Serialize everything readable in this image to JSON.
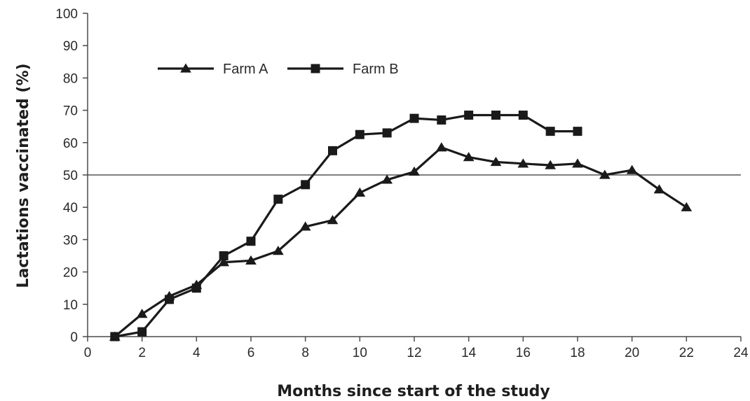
{
  "chart_data": {
    "type": "line",
    "title": "",
    "xlabel": "Months since start of the study",
    "ylabel": "Lactations vaccinated (%)",
    "xlim": [
      0,
      24
    ],
    "ylim": [
      0,
      100
    ],
    "x_ticks": [
      0,
      2,
      4,
      6,
      8,
      10,
      12,
      14,
      16,
      18,
      20,
      22,
      24
    ],
    "y_ticks": [
      0,
      10,
      20,
      30,
      40,
      50,
      60,
      70,
      80,
      90,
      100
    ],
    "grid": false,
    "legend_position": "top-left",
    "reference_line": {
      "y": 50
    },
    "series": [
      {
        "name": "Farm A",
        "marker": "triangle",
        "color": "#1a1a1a",
        "x": [
          1,
          2,
          3,
          4,
          5,
          6,
          7,
          8,
          9,
          10,
          11,
          12,
          13,
          14,
          15,
          16,
          17,
          18,
          19,
          20,
          21,
          22
        ],
        "y": [
          0,
          7,
          12.5,
          16,
          23,
          23.5,
          26.5,
          34,
          36,
          44.5,
          48.5,
          51,
          58.5,
          55.5,
          54,
          53.5,
          53,
          53.5,
          50,
          51.5,
          45.5,
          40
        ]
      },
      {
        "name": "Farm B",
        "marker": "square",
        "color": "#1a1a1a",
        "x": [
          1,
          2,
          3,
          4,
          5,
          6,
          7,
          8,
          9,
          10,
          11,
          12,
          13,
          14,
          15,
          16,
          17,
          18
        ],
        "y": [
          0,
          1.5,
          11.5,
          15,
          25,
          29.5,
          42.5,
          47,
          57.5,
          62.5,
          63,
          67.5,
          67,
          68.5,
          68.5,
          68.5,
          63.5,
          63.5
        ]
      }
    ]
  }
}
